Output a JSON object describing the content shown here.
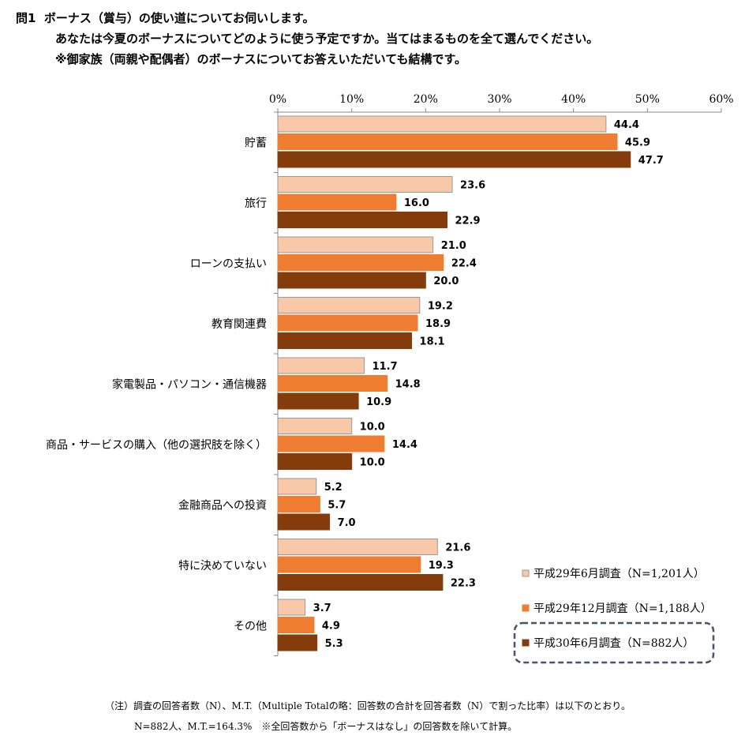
{
  "question": {
    "number": "問1",
    "line1": "ボーナス（賞与）の使い道についてお伺いします。",
    "line2": "あなたは今夏のボーナスについてどのように使う予定ですか。当てはまるものを全て選んでください。",
    "line3": "※御家族（両親や配偶者）のボーナスについてお答えいただいても結構です。"
  },
  "chart_data": {
    "type": "bar",
    "orientation": "horizontal",
    "title": "",
    "xlabel": "",
    "ylabel": "",
    "xlim": [
      0,
      60
    ],
    "ticks": [
      "0%",
      "10%",
      "20%",
      "30%",
      "40%",
      "50%",
      "60%"
    ],
    "tick_values": [
      0,
      10,
      20,
      30,
      40,
      50,
      60
    ],
    "categories": [
      "貯蓄",
      "旅行",
      "ローンの支払い",
      "教育関連費",
      "家電製品・パソコン・通信機器",
      "商品・サービスの購入（他の選択肢を除く）",
      "金融商品への投資",
      "特に決めていない",
      "その他"
    ],
    "series": [
      {
        "name": "平成29年6月調査（N=1,201人）",
        "color": "#f8c8a8",
        "border": "#999999",
        "values": [
          44.4,
          23.6,
          21.0,
          19.2,
          11.7,
          10.0,
          5.2,
          21.6,
          3.7
        ]
      },
      {
        "name": "平成29年12月調査（N=1,188人）",
        "color": "#ee7d32",
        "border": "#ee7d32",
        "values": [
          45.9,
          16.0,
          22.4,
          18.9,
          14.8,
          14.4,
          5.7,
          19.3,
          4.9
        ]
      },
      {
        "name": "平成30年6月調査（N=882人）",
        "color": "#843c0c",
        "border": "#843c0c",
        "values": [
          47.7,
          22.9,
          20.0,
          18.1,
          10.9,
          10.0,
          7.0,
          22.3,
          5.3
        ]
      }
    ],
    "value_labels": [
      [
        "44.4",
        "23.6",
        "21.0",
        "19.2",
        "11.7",
        "10.0",
        "5.2",
        "21.6",
        "3.7"
      ],
      [
        "45.9",
        "16.0",
        "22.4",
        "18.9",
        "14.8",
        "14.4",
        "5.7",
        "19.3",
        "4.9"
      ],
      [
        "47.7",
        "22.9",
        "20.0",
        "18.1",
        "10.9",
        "10.0",
        "7.0",
        "22.3",
        "5.3"
      ]
    ],
    "grid": false,
    "legend_position": "bottom-right",
    "legend_highlight_index": 2
  },
  "notes": {
    "line1": "（注）調査の回答者数（N）、M.T.（Multiple Totalの略：回答数の合計を回答者数（N）で割った比率）は以下のとおり。",
    "line2": "N=882人、M.T.=164.3%　※全回答数から「ボーナスはなし」の回答数を除いて計算。"
  }
}
